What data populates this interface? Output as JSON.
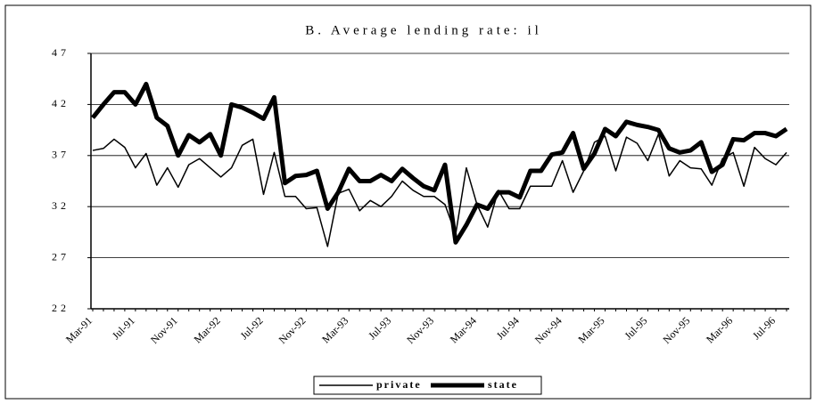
{
  "chart_data": {
    "type": "line",
    "title": "B. Average lending rate: il",
    "categories": [
      "Mar-91",
      null,
      null,
      null,
      "Jul-91",
      null,
      null,
      null,
      "Nov-91",
      null,
      null,
      null,
      "Mar-92",
      null,
      null,
      null,
      "Jul-92",
      null,
      null,
      null,
      "Nov-92",
      null,
      null,
      null,
      "Mar-93",
      null,
      null,
      null,
      "Jul-93",
      null,
      null,
      null,
      "Nov-93",
      null,
      null,
      null,
      "Mar-94",
      null,
      null,
      null,
      "Jul-94",
      null,
      null,
      null,
      "Nov-94",
      null,
      null,
      null,
      "Mar-95",
      null,
      null,
      null,
      "Jul-95",
      null,
      null,
      null,
      "Nov-95",
      null,
      null,
      null,
      "Mar-96",
      null,
      null,
      null,
      "Jul-96",
      null
    ],
    "series": [
      {
        "name": "private",
        "color": "#000000",
        "line_width": 1.5,
        "values": [
          37.5,
          37.7,
          38.6,
          37.8,
          35.8,
          37.2,
          34.1,
          35.8,
          33.9,
          36.1,
          36.7,
          35.8,
          34.9,
          35.8,
          38,
          38.6,
          33.2,
          37.3,
          33,
          33,
          31.8,
          31.9,
          28.1,
          33.3,
          33.7,
          31.6,
          32.6,
          32,
          33,
          34.5,
          33.6,
          33,
          33,
          32.2,
          29.3,
          35.8,
          32.2,
          30,
          33.6,
          31.8,
          31.8,
          34,
          34,
          34,
          36.5,
          33.4,
          35.5,
          38.3,
          38.9,
          35.5,
          38.8,
          38.2,
          36.5,
          39.1,
          35,
          36.5,
          35.8,
          35.7,
          34.1,
          36.7,
          37.3,
          34,
          37.8,
          36.7,
          36.1,
          37.3
        ]
      },
      {
        "name": "state",
        "color": "#000000",
        "line_width": 5,
        "values": [
          40.7,
          42,
          43.2,
          43.2,
          42,
          44,
          40.7,
          39.9,
          37,
          39,
          38.3,
          39.1,
          37,
          42,
          41.7,
          41.2,
          40.6,
          42.7,
          34.3,
          35,
          35.1,
          35.5,
          31.8,
          33.4,
          35.7,
          34.5,
          34.5,
          35.1,
          34.5,
          35.7,
          34.8,
          34,
          33.6,
          36.1,
          28.5,
          30.2,
          32.2,
          31.8,
          33.4,
          33.4,
          32.9,
          35.5,
          35.5,
          37.1,
          37.3,
          39.2,
          35.7,
          37.2,
          39.6,
          38.9,
          40.3,
          40,
          39.8,
          39.5,
          37.7,
          37.3,
          37.5,
          38.3,
          35.4,
          36.1,
          38.6,
          38.5,
          39.2,
          39.2,
          38.9,
          39.6
        ]
      }
    ],
    "ylim": [
      22,
      47
    ],
    "yticks": [
      22,
      27,
      32,
      37,
      42,
      47
    ],
    "grid": true,
    "legend": "bottom"
  }
}
